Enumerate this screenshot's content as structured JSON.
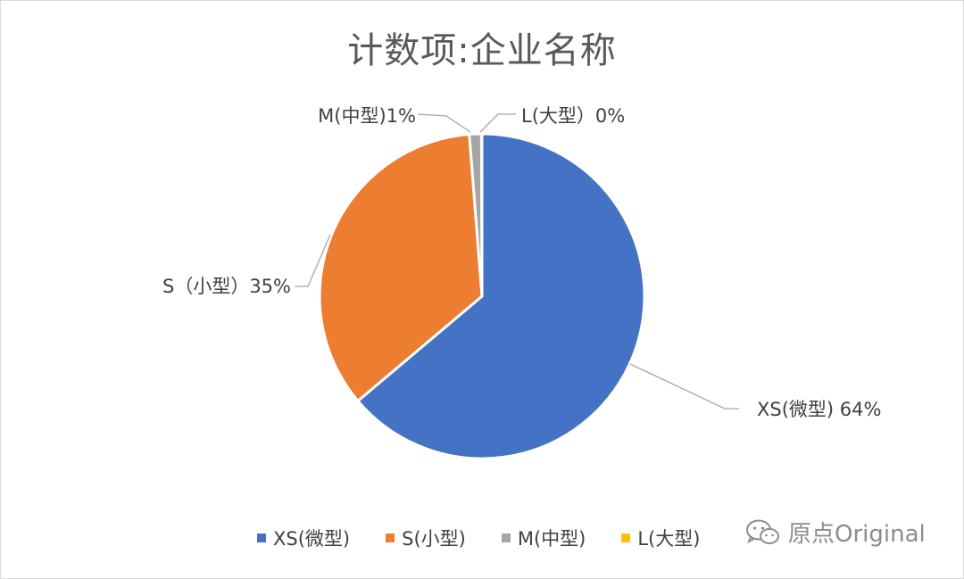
{
  "chart_data": {
    "type": "pie",
    "title": "计数项:企业名称",
    "slices": [
      {
        "label": "XS(微型)",
        "value": 64,
        "data_label": "XS(微型) 64%",
        "color": "#4472c4"
      },
      {
        "label": "S(小型)",
        "value": 35,
        "data_label": "S（小型）35%",
        "color": "#ed7d31"
      },
      {
        "label": "M(中型)",
        "value": 1.2,
        "data_label": "M(中型)1%",
        "color": "#a5a5a5"
      },
      {
        "label": "L(大型)",
        "value": 0.05,
        "data_label": "L(大型）0%",
        "color": "#ffc000"
      }
    ],
    "legend_position": "bottom"
  },
  "watermark": {
    "text": "原点Original",
    "icon": "wechat-icon"
  }
}
